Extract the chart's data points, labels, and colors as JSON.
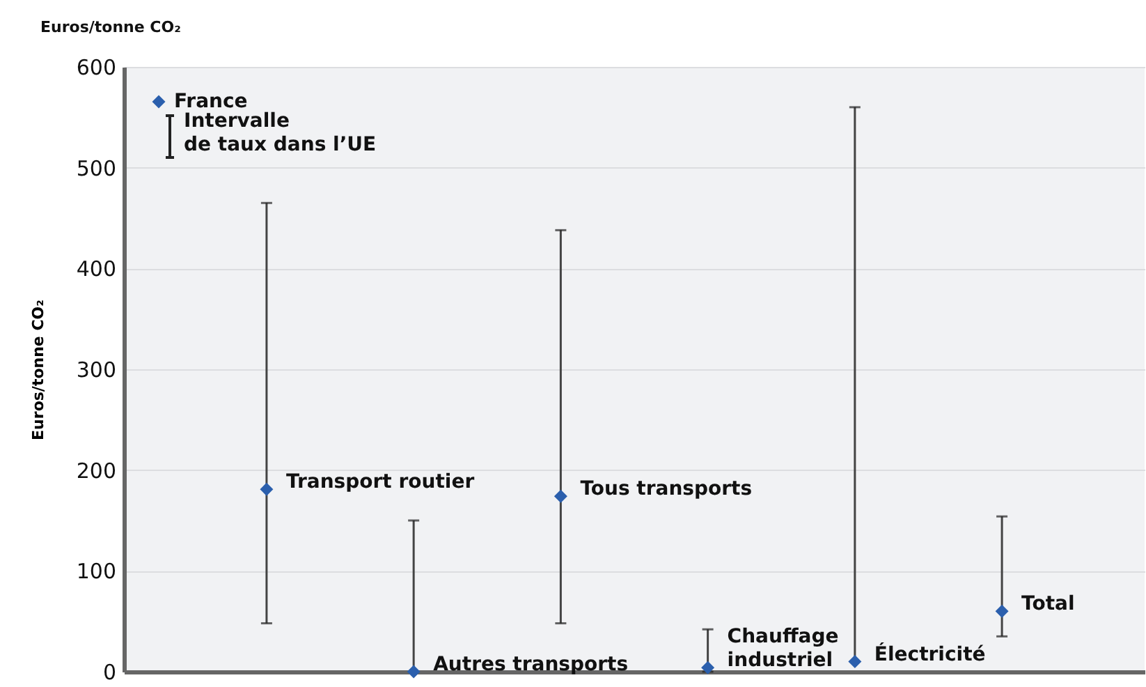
{
  "chart_data": {
    "type": "scatter",
    "title": "Euros/tonne CO₂",
    "ylabel": "Euros/tonne CO₂",
    "categories": [
      null,
      null,
      null,
      null,
      null,
      null
    ],
    "series": [
      {
        "name": "France",
        "color": "#2b5fad",
        "values": [
          181,
          0,
          174,
          4,
          10,
          60
        ],
        "errors": [
          [
            48,
            465
          ],
          [
            0,
            150
          ],
          [
            48,
            438
          ],
          [
            0,
            42
          ],
          [
            10,
            560
          ],
          [
            35,
            154
          ]
        ]
      }
    ],
    "annotations": [
      "Intervalle\nde taux dans l’UE",
      "Transport routier",
      "Autres transports",
      "Tous transports",
      "Chauffage\nindustriel",
      "Électricité",
      "Total"
    ],
    "ylim": [
      0,
      600
    ],
    "yticks": [
      0,
      100,
      200,
      300,
      400,
      500,
      600
    ],
    "grid": "y",
    "legend": "top left",
    "marker": "diamond",
    "tick_labels": "y"
  }
}
